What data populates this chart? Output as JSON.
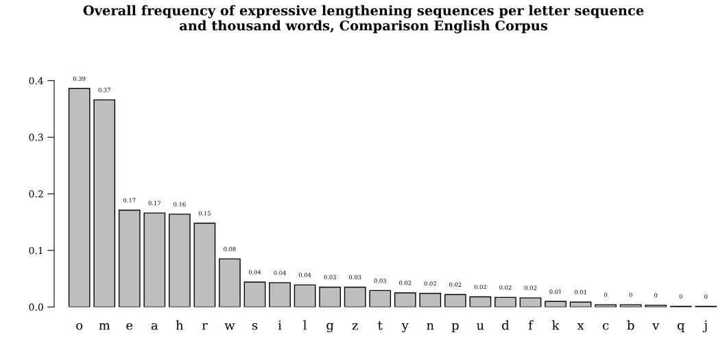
{
  "chart_data": {
    "type": "bar",
    "title": "Overall frequency of expressive lengthening sequences per letter sequence\nand thousand words, Comparison English Corpus",
    "categories": [
      "o",
      "m",
      "e",
      "a",
      "h",
      "r",
      "w",
      "s",
      "i",
      "l",
      "g",
      "z",
      "t",
      "y",
      "n",
      "p",
      "u",
      "d",
      "f",
      "k",
      "x",
      "c",
      "b",
      "v",
      "q",
      "j"
    ],
    "values": [
      0.386,
      0.366,
      0.171,
      0.166,
      0.164,
      0.148,
      0.085,
      0.044,
      0.043,
      0.039,
      0.035,
      0.035,
      0.029,
      0.025,
      0.024,
      0.022,
      0.018,
      0.017,
      0.016,
      0.0098,
      0.0087,
      0.004,
      0.004,
      0.003,
      0.001,
      0.001
    ],
    "value_labels": [
      "0.39",
      "0.37",
      "0.17",
      "0.17",
      "0.16",
      "0.15",
      "0.08",
      "0.04",
      "0.04",
      "0.04",
      "0.03",
      "0.03",
      "0.03",
      "0.02",
      "0.02",
      "0.02",
      "0.02",
      "0.02",
      "0.02",
      "0.01",
      "0.01",
      "0",
      "0",
      "0",
      "0",
      "0"
    ],
    "color": "#bebebe",
    "ylim": [
      0,
      0.4
    ],
    "yticks": [
      {
        "value": 0,
        "label": "0.0"
      },
      0.1,
      0.2,
      0.3,
      0.4
    ],
    "grid": false,
    "legend": false
  }
}
